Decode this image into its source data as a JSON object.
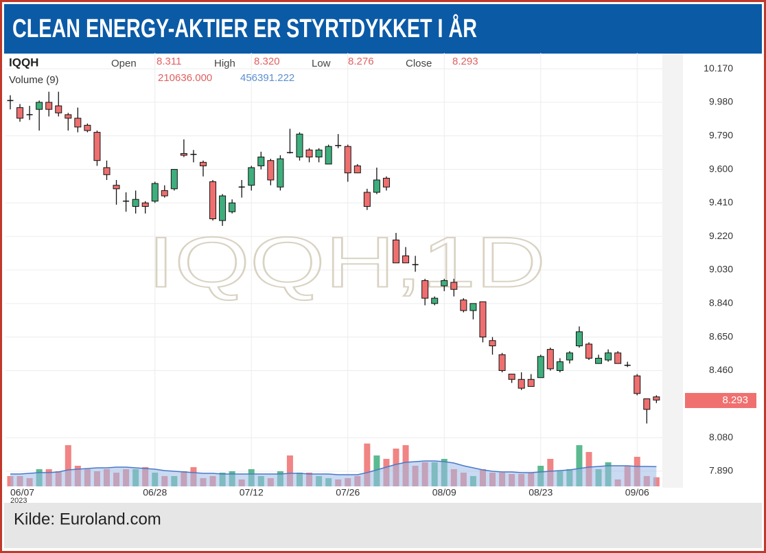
{
  "chart_data": {
    "type": "candlestick",
    "title": "CLEAN ENERGY-AKTIER ER STYRTDYKKET I ÅR",
    "source": "Kilde: Euroland.com",
    "watermark": "IQQH,1D",
    "header": {
      "symbol": "IQQH",
      "fields": [
        {
          "label": "Open",
          "value": "8.311"
        },
        {
          "label": "High",
          "value": "8.320"
        },
        {
          "label": "Low",
          "value": "8.276"
        },
        {
          "label": "Close",
          "value": "8.293"
        }
      ],
      "volume_label": "Volume (9)",
      "volume": "210636.000",
      "volume_ma": "456391.222"
    },
    "last_price_label": "8.293",
    "categories": [
      "06/07",
      null,
      null,
      null,
      null,
      null,
      null,
      null,
      null,
      null,
      null,
      null,
      null,
      null,
      null,
      "06/28",
      null,
      null,
      null,
      null,
      null,
      null,
      null,
      null,
      null,
      "07/12",
      null,
      null,
      null,
      null,
      null,
      null,
      null,
      null,
      null,
      "07/26",
      null,
      null,
      null,
      null,
      null,
      null,
      null,
      null,
      null,
      "08/09",
      null,
      null,
      null,
      null,
      null,
      null,
      null,
      null,
      null,
      "08/23",
      null,
      null,
      null,
      null,
      null,
      null,
      null,
      null,
      null,
      "09/06",
      null,
      null
    ],
    "x_year": "2023",
    "open": [
      9.99,
      9.95,
      9.91,
      9.94,
      9.98,
      9.96,
      9.91,
      9.89,
      9.85,
      9.81,
      9.61,
      9.51,
      9.42,
      9.39,
      9.41,
      9.42,
      9.48,
      9.49,
      9.69,
      9.685,
      9.64,
      9.53,
      9.31,
      9.36,
      9.5,
      9.51,
      9.62,
      9.65,
      9.5,
      9.695,
      9.67,
      9.71,
      9.67,
      9.63,
      9.735,
      9.73,
      9.62,
      9.47,
      9.47,
      9.55,
      9.2,
      9.11,
      9.06,
      8.97,
      8.84,
      8.94,
      8.96,
      8.86,
      8.8,
      8.85,
      8.63,
      8.55,
      8.44,
      8.41,
      8.41,
      8.42,
      8.58,
      8.46,
      8.52,
      8.6,
      8.61,
      8.5,
      8.52,
      8.56,
      8.49,
      8.43,
      8.3,
      8.311
    ],
    "high": [
      10.02,
      9.97,
      9.96,
      9.99,
      10.04,
      10.04,
      9.92,
      9.95,
      9.86,
      9.82,
      9.65,
      9.54,
      9.47,
      9.48,
      9.42,
      9.53,
      9.51,
      9.6,
      9.77,
      9.71,
      9.65,
      9.54,
      9.46,
      9.43,
      9.54,
      9.62,
      9.7,
      9.66,
      9.68,
      9.83,
      9.81,
      9.72,
      9.72,
      9.74,
      9.8,
      9.74,
      9.63,
      9.49,
      9.61,
      9.56,
      9.24,
      9.16,
      9.11,
      8.98,
      8.88,
      8.98,
      8.98,
      8.87,
      8.84,
      8.85,
      8.65,
      8.56,
      8.44,
      8.45,
      8.44,
      8.55,
      8.59,
      8.53,
      8.57,
      8.71,
      8.62,
      8.55,
      8.58,
      8.57,
      8.51,
      8.44,
      8.3,
      8.32
    ],
    "low": [
      9.94,
      9.87,
      9.88,
      9.82,
      9.9,
      9.9,
      9.82,
      9.81,
      9.81,
      9.62,
      9.54,
      9.4,
      9.36,
      9.35,
      9.35,
      9.41,
      9.44,
      9.48,
      9.67,
      9.64,
      9.56,
      9.31,
      9.28,
      9.35,
      9.44,
      9.48,
      9.6,
      9.51,
      9.48,
      9.69,
      9.65,
      9.64,
      9.64,
      9.63,
      9.72,
      9.53,
      9.58,
      9.37,
      9.46,
      9.48,
      9.07,
      9.07,
      9.02,
      8.83,
      8.83,
      8.91,
      8.88,
      8.79,
      8.75,
      8.62,
      8.55,
      8.45,
      8.39,
      8.35,
      8.37,
      8.42,
      8.46,
      8.45,
      8.5,
      8.59,
      8.52,
      8.5,
      8.51,
      8.5,
      8.48,
      8.32,
      8.16,
      8.276
    ],
    "close": [
      9.985,
      9.89,
      9.905,
      9.98,
      9.94,
      9.92,
      9.89,
      9.84,
      9.82,
      9.65,
      9.57,
      9.49,
      9.415,
      9.43,
      9.39,
      9.52,
      9.45,
      9.6,
      9.68,
      9.68,
      9.62,
      9.32,
      9.45,
      9.41,
      9.495,
      9.61,
      9.67,
      9.54,
      9.66,
      9.69,
      9.8,
      9.67,
      9.71,
      9.73,
      9.73,
      9.58,
      9.58,
      9.39,
      9.54,
      9.5,
      9.07,
      9.07,
      9.055,
      8.87,
      8.87,
      8.97,
      8.92,
      8.8,
      8.84,
      8.65,
      8.6,
      8.46,
      8.41,
      8.36,
      8.37,
      8.54,
      8.47,
      8.51,
      8.56,
      8.68,
      8.53,
      8.53,
      8.56,
      8.5,
      8.485,
      8.33,
      8.24,
      8.293
    ],
    "volume": [
      238000,
      238000,
      190000,
      397000,
      397000,
      349000,
      952000,
      476000,
      397000,
      349000,
      397000,
      317000,
      397000,
      397000,
      444000,
      317000,
      238000,
      238000,
      349000,
      444000,
      190000,
      238000,
      317000,
      349000,
      159000,
      397000,
      238000,
      190000,
      349000,
      714000,
      317000,
      317000,
      238000,
      190000,
      159000,
      190000,
      238000,
      990000,
      714000,
      635000,
      873000,
      952000,
      476000,
      556000,
      556000,
      635000,
      397000,
      317000,
      238000,
      397000,
      317000,
      317000,
      286000,
      286000,
      317000,
      476000,
      635000,
      349000,
      397000,
      952000,
      794000,
      397000,
      556000,
      159000,
      476000,
      683000,
      238000,
      210636
    ],
    "volume_ma": [
      286000,
      286000,
      302000,
      317000,
      317000,
      333000,
      381000,
      397000,
      413000,
      429000,
      429000,
      444000,
      444000,
      429000,
      413000,
      397000,
      365000,
      349000,
      333000,
      317000,
      302000,
      302000,
      286000,
      286000,
      286000,
      286000,
      286000,
      286000,
      286000,
      302000,
      302000,
      286000,
      286000,
      286000,
      270000,
      270000,
      270000,
      317000,
      381000,
      444000,
      508000,
      556000,
      571000,
      587000,
      587000,
      571000,
      540000,
      476000,
      429000,
      381000,
      349000,
      333000,
      333000,
      317000,
      317000,
      333000,
      349000,
      365000,
      381000,
      413000,
      444000,
      460000,
      476000,
      476000,
      476000,
      460000,
      460000,
      456391
    ],
    "volume_lim": [
      0,
      1000000
    ],
    "ylim": [
      7.8,
      10.26
    ],
    "yticks": [
      {
        "value": 10.17,
        "label": "10.170"
      },
      {
        "value": 9.98,
        "label": "9.980"
      },
      {
        "value": 9.79,
        "label": "9.790"
      },
      {
        "value": 9.6,
        "label": "9.600"
      },
      {
        "value": 9.41,
        "label": "9.410"
      },
      {
        "value": 9.22,
        "label": "9.220"
      },
      {
        "value": 9.03,
        "label": "9.030"
      },
      {
        "value": 8.84,
        "label": "8.840"
      },
      {
        "value": 8.65,
        "label": "8.650"
      },
      {
        "value": 8.46,
        "label": "8.460"
      },
      {
        "value": 8.08,
        "label": "8.080"
      },
      {
        "value": 7.89,
        "label": "7.890"
      }
    ],
    "grid": true,
    "up_color": "#3fae7d",
    "down_color": "#ee6f6f",
    "ma_color": "#4a78c8",
    "ma_fill": "#9cbce8"
  }
}
